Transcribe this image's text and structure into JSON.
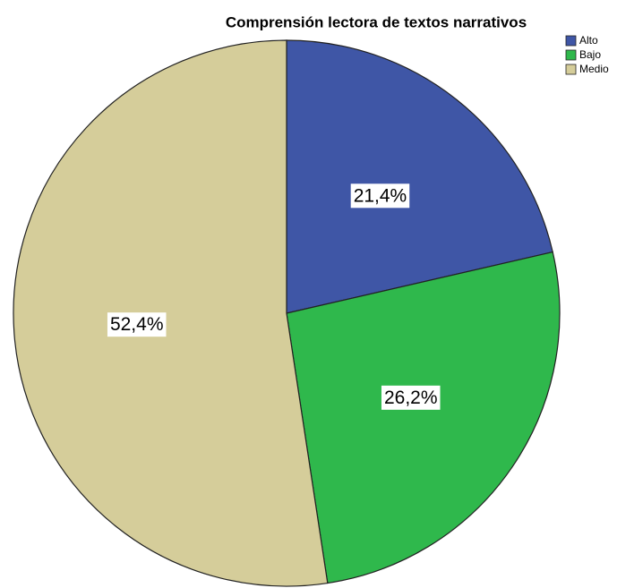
{
  "chart_data": {
    "type": "pie",
    "title": "Comprensión lectora de textos narrativos",
    "categories": [
      "Alto",
      "Bajo",
      "Medio"
    ],
    "values": [
      21.4,
      26.2,
      52.4
    ],
    "value_labels": [
      "21,4%",
      "26,2%",
      "52,4%"
    ],
    "colors": [
      "#3f56a6",
      "#2fb84c",
      "#d5cd9a"
    ],
    "legend": "top-right"
  }
}
